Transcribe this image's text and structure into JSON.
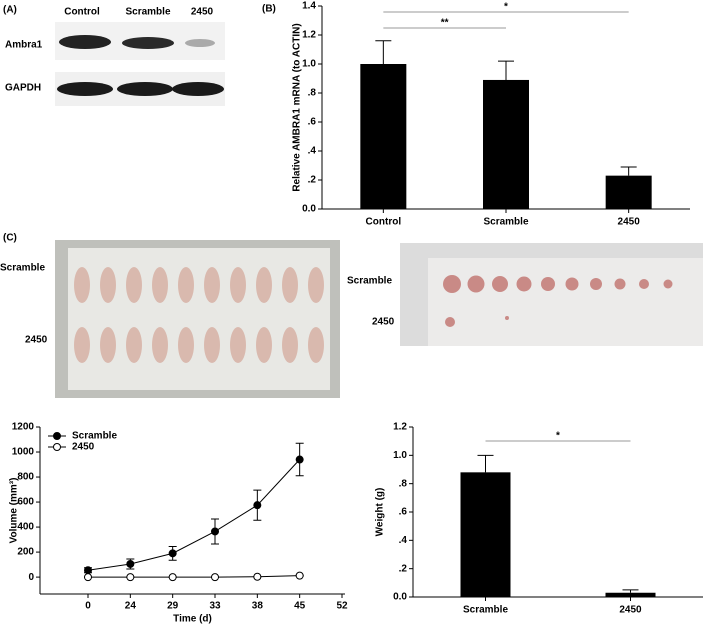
{
  "panel_labels": [
    "(A)",
    "(B)",
    "(C)"
  ],
  "blot": {
    "lanes": [
      "Control",
      "Scramble",
      "2450"
    ],
    "rows": [
      "Ambra1",
      "GAPDH"
    ]
  },
  "mice_photo": {
    "rows": [
      "Scramble",
      "2450"
    ]
  },
  "tumor_photo": {
    "rows": [
      "Scramble",
      "2450"
    ]
  },
  "chart_data": [
    {
      "type": "bar",
      "ylabel": "Relative AMBRA1 mRNA (to ACTIN)",
      "categories": [
        "Control",
        "Scramble",
        "2450"
      ],
      "values": [
        1.0,
        0.89,
        0.23
      ],
      "errors": [
        0.16,
        0.13,
        0.06
      ],
      "color": "#000000",
      "ylim": [
        0,
        1.4
      ],
      "yticks": [
        {
          "value": 0,
          "label": "0.0"
        },
        {
          "value": 0.2,
          "label": ".2"
        },
        {
          "value": 0.4,
          "label": ".4"
        },
        {
          "value": 0.6,
          "label": ".6"
        },
        {
          "value": 0.8,
          "label": ".8"
        },
        {
          "value": 1.0,
          "label": "1.0"
        },
        {
          "value": 1.2,
          "label": "1.2"
        },
        {
          "value": 1.4,
          "label": "1.4"
        }
      ],
      "annotations": [
        "**",
        "*"
      ]
    },
    {
      "type": "line",
      "xlabel": "Time (d)",
      "ylabel": "Volume (mm³)",
      "categories": [
        "0",
        "24",
        "29",
        "33",
        "38",
        "45",
        "52"
      ],
      "series": [
        {
          "name": "Scramble",
          "color": "#000000",
          "values": [
            55,
            105,
            190,
            365,
            575,
            940,
            null
          ],
          "errors": [
            20,
            40,
            55,
            100,
            120,
            130,
            null
          ]
        },
        {
          "name": "2450",
          "color": "#ffffff",
          "values": [
            0,
            0,
            0,
            0,
            3,
            12,
            null
          ],
          "errors": [
            2,
            2,
            2,
            2,
            3,
            4,
            null
          ]
        }
      ],
      "ylim": [
        -135,
        1200
      ],
      "yticks": [
        0,
        200,
        400,
        600,
        800,
        1000,
        1200
      ],
      "legend": "upper-left"
    },
    {
      "type": "bar",
      "ylabel": "Weight (g)",
      "categories": [
        "Scramble",
        "2450"
      ],
      "values": [
        0.88,
        0.03
      ],
      "errors": [
        0.12,
        0.02
      ],
      "color": "#000000",
      "ylim": [
        0,
        1.2
      ],
      "yticks": [
        {
          "value": 0,
          "label": "0.0"
        },
        {
          "value": 0.2,
          "label": ".2"
        },
        {
          "value": 0.4,
          "label": ".4"
        },
        {
          "value": 0.6,
          "label": ".6"
        },
        {
          "value": 0.8,
          "label": ".8"
        },
        {
          "value": 1.0,
          "label": "1.0"
        },
        {
          "value": 1.2,
          "label": "1.2"
        }
      ],
      "annotations": [
        "*"
      ]
    }
  ]
}
